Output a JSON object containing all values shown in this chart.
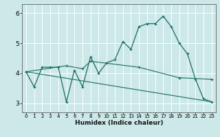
{
  "xlabel": "Humidex (Indice chaleur)",
  "bg_color": "#cce8e8",
  "grid_color": "#ffffff",
  "line_color": "#1a6b60",
  "xlim": [
    -0.5,
    23.5
  ],
  "ylim": [
    2.7,
    6.3
  ],
  "yticks": [
    3,
    4,
    5,
    6
  ],
  "ytick_labels": [
    "3",
    "4",
    "5",
    "6"
  ],
  "xticks": [
    0,
    1,
    2,
    3,
    4,
    5,
    6,
    7,
    8,
    9,
    10,
    11,
    12,
    13,
    14,
    15,
    16,
    17,
    18,
    19,
    20,
    21,
    22,
    23
  ],
  "series1_x": [
    0,
    1,
    2,
    3,
    4,
    5,
    6,
    7,
    8,
    9,
    10,
    11,
    12,
    13,
    14,
    15,
    16,
    17,
    18,
    19,
    20,
    21,
    22,
    23
  ],
  "series1_y": [
    4.05,
    3.55,
    4.2,
    4.2,
    4.2,
    3.05,
    4.1,
    3.55,
    4.55,
    4.0,
    4.35,
    4.45,
    5.05,
    4.8,
    5.55,
    5.65,
    5.65,
    5.9,
    5.55,
    5.0,
    4.65,
    3.8,
    3.15,
    3.05
  ],
  "series2_x": [
    0,
    5,
    7,
    8,
    14,
    19,
    23
  ],
  "series2_y": [
    4.05,
    4.25,
    4.15,
    4.4,
    4.2,
    3.85,
    3.8
  ],
  "series3_x": [
    0,
    23
  ],
  "series3_y": [
    4.05,
    3.05
  ]
}
